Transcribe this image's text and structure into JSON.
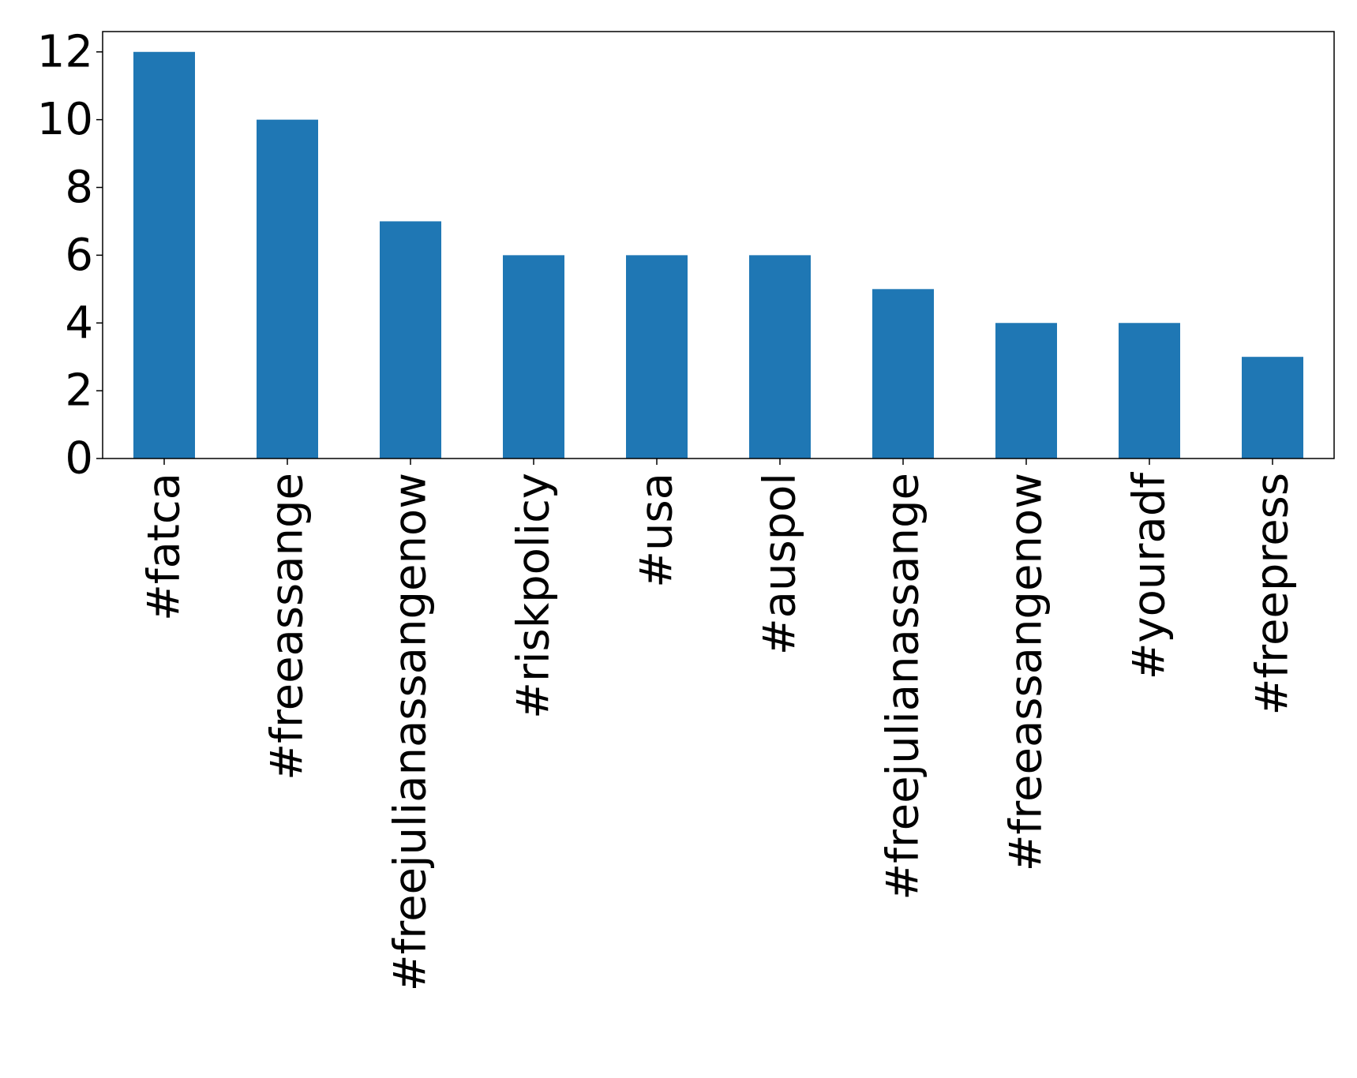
{
  "chart_data": {
    "type": "bar",
    "title": "",
    "xlabel": "",
    "ylabel": "",
    "categories": [
      "#fatca",
      "#freeassange",
      "#freejulianassangenow",
      "#riskpolicy",
      "#usa",
      "#auspol",
      "#freejulianassange",
      "#freeassangenow",
      "#youradf",
      "#freepress"
    ],
    "values": [
      12,
      10,
      7,
      6,
      6,
      6,
      5,
      4,
      4,
      3
    ],
    "ylim": [
      0,
      12.6
    ],
    "yticks": [
      0,
      2,
      4,
      6,
      8,
      10,
      12
    ],
    "bar_color": "#1f77b4",
    "grid": false,
    "legend": "none"
  }
}
